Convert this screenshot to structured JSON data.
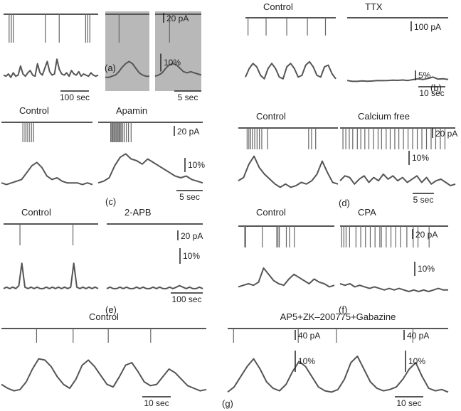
{
  "chart_data": [
    {
      "type": "line",
      "panel": "(a)",
      "scale_bars": {
        "current": "20 pA",
        "calcium": "10%",
        "time": [
          "100 sec",
          "5 sec"
        ]
      },
      "conditions": [
        {
          "title": "",
          "duration_sec": 340,
          "spike_times": [
            20,
            28,
            35,
            150,
            200,
            295,
            302,
            310
          ],
          "calcium": [
            4,
            3,
            5,
            2,
            6,
            3,
            4,
            12,
            5,
            3,
            6,
            8,
            4,
            3,
            14,
            6,
            4,
            10,
            16,
            7,
            4,
            5,
            18,
            9,
            5,
            4,
            6,
            3,
            8,
            5,
            4,
            7,
            3,
            5,
            4,
            3,
            6,
            4,
            3,
            4
          ]
        },
        {
          "title": "",
          "duration_sec": 8,
          "inset": true,
          "spike_times": [
            2.5
          ],
          "calcium": [
            2,
            2,
            3,
            4,
            7,
            11,
            14,
            16,
            14,
            10,
            6,
            4,
            3,
            3
          ]
        },
        {
          "title": "",
          "duration_sec": 8,
          "inset": true,
          "spike_times": [
            2.5
          ],
          "calcium": [
            3,
            4,
            6,
            10,
            13,
            14,
            13,
            10,
            7,
            6,
            7,
            6,
            5,
            4
          ]
        }
      ]
    },
    {
      "type": "line",
      "panel": "(b)",
      "scale_bars": {
        "current": "100 pA",
        "calcium": "5%",
        "time": [
          "10 sec"
        ]
      },
      "conditions": [
        {
          "title": "Control",
          "duration_sec": 35,
          "spike_times": [
            1,
            8,
            16,
            24,
            31
          ],
          "calcium": [
            4,
            9,
            12,
            10,
            5,
            3,
            9,
            12,
            9,
            4,
            3,
            10,
            12,
            9,
            4,
            5,
            11,
            13,
            10,
            5,
            4,
            10,
            11,
            6,
            3
          ]
        },
        {
          "title": "TTX",
          "duration_sec": 38,
          "spike_times": [],
          "calcium": [
            2,
            1.5,
            1.5,
            1.8,
            1.6,
            1.7,
            2,
            1.9,
            2,
            2.2,
            2.1,
            2.3,
            2,
            2.5,
            3,
            2.6,
            3.2,
            4,
            2.8,
            3,
            2.6
          ]
        }
      ]
    },
    {
      "type": "line",
      "panel": "(c)",
      "scale_bars": {
        "current": "20 pA",
        "calcium": "10%",
        "time": [
          "5 sec"
        ]
      },
      "conditions": [
        {
          "title": "Control",
          "duration_sec": 17,
          "spike_times": [
            4.0,
            4.4,
            4.8,
            5.2,
            5.6,
            6.0
          ],
          "calcium": [
            2,
            1,
            2,
            3,
            4,
            8,
            12,
            14,
            11,
            6,
            4,
            5,
            3,
            2,
            2,
            2,
            1,
            2,
            1
          ]
        },
        {
          "title": "Apamin",
          "duration_sec": 20,
          "spike_times": [
            2.4,
            2.6,
            2.8,
            3.0,
            3.2,
            3.4,
            3.6,
            3.8,
            4.0,
            4.2,
            4.4,
            4.7,
            5.0,
            5.4,
            5.8,
            6.3
          ],
          "calcium": [
            2,
            3,
            5,
            12,
            17,
            19,
            16,
            15,
            13,
            16,
            14,
            12,
            10,
            8,
            6,
            5,
            6,
            4,
            3,
            2
          ]
        }
      ]
    },
    {
      "type": "line",
      "panel": "(d)",
      "scale_bars": {
        "current": "20 pA",
        "calcium": "10%",
        "time": [
          "5 sec"
        ]
      },
      "conditions": [
        {
          "title": "Control",
          "duration_sec": 17,
          "spike_times": [
            1.5,
            1.8,
            2.1,
            2.4,
            2.8,
            3.2,
            3.6,
            4.0,
            5.0,
            12.0,
            12.5,
            13.2
          ],
          "calcium": [
            6,
            8,
            16,
            21,
            14,
            10,
            7,
            4,
            2,
            4,
            2,
            3,
            5,
            4,
            6,
            10,
            18,
            11,
            5,
            4
          ]
        },
        {
          "title": "Calcium free",
          "duration_sec": 20,
          "spike_times": [
            0.5,
            1.0,
            1.6,
            2.2,
            3.0,
            3.6,
            4.3,
            5.0,
            5.8,
            6.6,
            7.2,
            8.0,
            8.7,
            9.5,
            10.2,
            11.0,
            11.8,
            12.6,
            13.4,
            14.2,
            15.0,
            15.8,
            16.6,
            17.4,
            18.2
          ],
          "calcium": [
            6,
            9,
            8,
            4,
            7,
            9,
            5,
            8,
            6,
            10,
            7,
            9,
            6,
            8,
            5,
            7,
            9,
            5,
            8,
            4,
            6,
            7,
            5,
            3,
            4
          ]
        }
      ]
    },
    {
      "type": "line",
      "panel": "(e)",
      "scale_bars": {
        "current": "20 pA",
        "calcium": "10%",
        "time": [
          "100 sec"
        ]
      },
      "conditions": [
        {
          "title": "Control",
          "duration_sec": 300,
          "spike_times": [
            52,
            220
          ],
          "calcium": [
            1,
            2,
            1,
            2,
            1,
            3,
            18,
            2,
            1,
            2,
            1,
            2,
            1,
            1,
            2,
            1,
            2,
            1,
            2,
            1,
            2,
            1,
            2,
            18,
            2,
            1,
            2,
            1,
            2,
            1,
            2,
            1
          ]
        },
        {
          "title": "2-APB",
          "duration_sec": 300,
          "spike_times": [],
          "calcium": [
            1,
            2,
            1,
            1,
            2,
            1,
            2,
            1,
            1,
            2,
            1,
            2,
            1,
            1,
            2,
            1,
            2,
            1,
            1,
            2,
            1,
            2,
            3,
            2,
            1,
            2,
            1,
            1,
            2,
            1
          ]
        }
      ]
    },
    {
      "type": "line",
      "panel": "(f)",
      "scale_bars": {
        "current": "20 pA",
        "calcium": "10%"
      },
      "conditions": [
        {
          "title": "Control",
          "duration_sec": 30,
          "spike_times": [
            2,
            2.3,
            7.5,
            12,
            12.4,
            12.8,
            15,
            16,
            17.5
          ],
          "calcium": [
            3,
            4,
            5,
            4,
            6,
            15,
            11,
            7,
            5,
            4,
            8,
            11,
            9,
            7,
            5,
            8,
            6,
            5,
            3,
            4
          ]
        },
        {
          "title": "CPA",
          "duration_sec": 34,
          "spike_times": [
            0.5,
            1.2,
            1.9,
            3,
            5,
            6.5,
            8,
            9.5,
            11,
            12.5,
            13,
            14.5,
            16,
            17.5,
            19,
            21,
            23,
            24.5,
            28
          ],
          "calcium": [
            5,
            4,
            5,
            3,
            4,
            3,
            2,
            3,
            2,
            1,
            2,
            1,
            2,
            1,
            0,
            1,
            0,
            1,
            0,
            1,
            2,
            1,
            1
          ]
        }
      ]
    },
    {
      "type": "line",
      "panel": "(g)",
      "scale_bars": {
        "current": "40 pA",
        "calcium": "10%",
        "time": [
          "10 sec",
          "10 sec"
        ]
      },
      "conditions": [
        {
          "title": "Control",
          "duration_sec": 70,
          "spike_times": [
            12,
            24.5,
            36.5,
            51
          ],
          "calcium": [
            8,
            5,
            3,
            4,
            10,
            20,
            28,
            27,
            22,
            14,
            8,
            5,
            12,
            23,
            27,
            22,
            15,
            8,
            6,
            14,
            23,
            25,
            18,
            10,
            7,
            8,
            14,
            20,
            17,
            12,
            7,
            5,
            3,
            4
          ]
        },
        {
          "title": "AP5+ZK–200775+Gabazine",
          "duration_sec": 75,
          "spike_times": [
            2,
            24,
            37,
            63
          ],
          "calcium": [
            2,
            6,
            14,
            22,
            28,
            20,
            10,
            5,
            3,
            8,
            18,
            26,
            22,
            14,
            6,
            3,
            2,
            4,
            12,
            25,
            30,
            20,
            10,
            5,
            3,
            4,
            6,
            12,
            20,
            25,
            14,
            5,
            3,
            4,
            2
          ]
        }
      ]
    }
  ]
}
